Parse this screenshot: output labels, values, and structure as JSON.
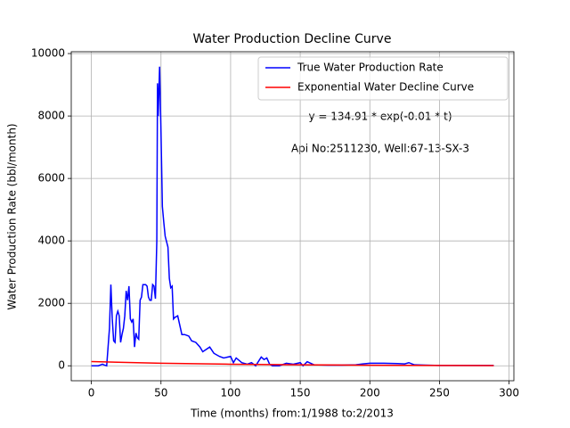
{
  "chart_data": {
    "type": "line",
    "title": "Water Production Decline Curve",
    "xlabel": "Time (months) from:1/1988 to:2/2013",
    "ylabel": "Water Production Rate (bbl/month)",
    "annotations": [
      "y = 134.91 * exp(-0.01 * t)",
      "Api No:2511230, Well:67-13-SX-3"
    ],
    "xlim": [
      -14.45,
      303.45
    ],
    "ylim": [
      -479,
      10059
    ],
    "xticks": [
      0,
      50,
      100,
      150,
      200,
      250,
      300
    ],
    "yticks": [
      0,
      2000,
      4000,
      6000,
      8000,
      10000
    ],
    "grid": true,
    "legend": "upper right",
    "series": [
      {
        "name": "True Water Production Rate",
        "color": "#0000ff",
        "x": [
          0,
          5,
          8,
          9,
          11,
          12,
          13,
          14,
          15,
          16,
          17,
          18,
          19,
          20,
          21,
          22,
          23,
          24,
          25,
          26,
          27,
          28,
          29,
          30,
          31,
          32,
          33,
          34,
          35,
          36,
          37,
          38,
          39,
          40,
          41,
          42,
          43,
          44,
          45,
          46,
          47,
          47.5,
          48,
          49,
          50,
          51,
          52,
          53,
          55,
          56,
          57,
          58,
          59,
          60,
          62,
          64,
          65,
          67,
          70,
          72,
          75,
          78,
          80,
          85,
          88,
          92,
          95,
          100,
          102,
          104,
          108,
          112,
          115,
          118,
          122,
          124,
          126,
          128,
          130,
          135,
          140,
          145,
          150,
          152,
          155,
          160,
          170,
          180,
          190,
          195,
          200,
          210,
          220,
          225,
          228,
          232,
          240,
          250,
          260,
          270,
          280,
          289
        ],
        "values": [
          0,
          0,
          50,
          30,
          0,
          600,
          1200,
          2600,
          1500,
          800,
          750,
          1600,
          1750,
          1600,
          750,
          1000,
          1200,
          1600,
          2400,
          2100,
          2550,
          1500,
          1400,
          1500,
          600,
          1050,
          900,
          850,
          2100,
          2200,
          2600,
          2600,
          2600,
          2550,
          2200,
          2100,
          2100,
          2600,
          2550,
          2150,
          4000,
          9050,
          8000,
          9580,
          7500,
          5100,
          4600,
          4150,
          3800,
          2800,
          2500,
          2550,
          1500,
          1550,
          1600,
          1200,
          1000,
          1000,
          950,
          800,
          750,
          600,
          450,
          600,
          400,
          300,
          250,
          300,
          100,
          250,
          100,
          50,
          100,
          0,
          280,
          200,
          250,
          50,
          0,
          0,
          80,
          50,
          100,
          0,
          130,
          30,
          20,
          20,
          30,
          60,
          80,
          80,
          70,
          60,
          100,
          30,
          20,
          10,
          10,
          10,
          10,
          10
        ]
      },
      {
        "name": "Exponential Water Decline Curve",
        "color": "#ff0000",
        "x": [
          0,
          50,
          100,
          150,
          200,
          250,
          289
        ],
        "values": [
          134.91,
          81.83,
          49.63,
          30.1,
          18.26,
          11.07,
          7.5
        ]
      }
    ]
  }
}
